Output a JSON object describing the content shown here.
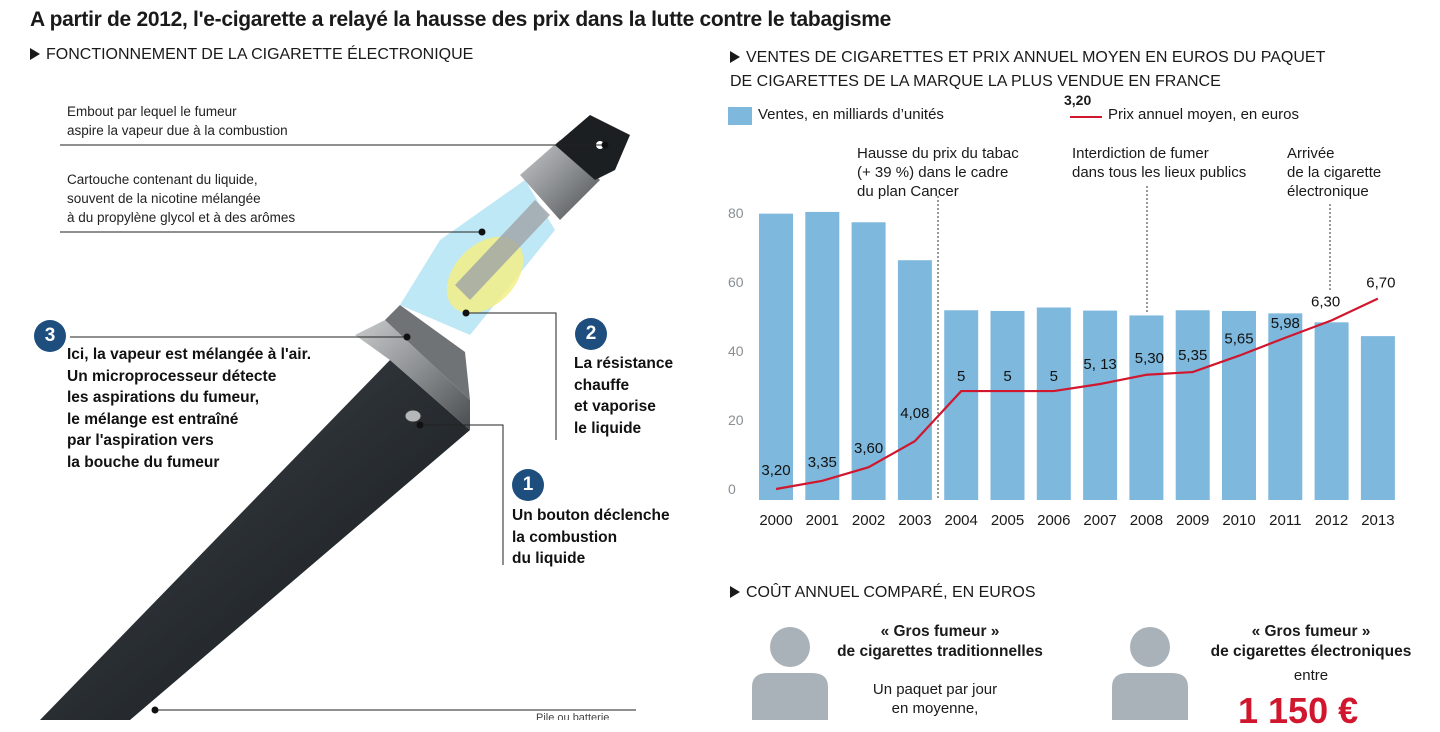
{
  "title": "A partir de 2012, l'e-cigarette a relayé la hausse des prix dans la lutte contre le tabagisme",
  "device": {
    "section_title": "FONCTIONNEMENT DE LA CIGARETTE ÉLECTRONIQUE",
    "label_mouthpiece": [
      "Embout par lequel le fumeur",
      "aspire la vapeur due à la combustion"
    ],
    "label_cartridge": [
      "Cartouche contenant du liquide,",
      "souvent de la nicotine mélangée",
      "à du propylène glycol et à des arômes"
    ],
    "step3": {
      "number": "3",
      "lines": [
        "Ici, la vapeur est mélangée à l'air.",
        "Un microprocesseur détecte",
        "les aspirations du fumeur,",
        "le mélange est entraîné",
        "par l'aspiration vers",
        "la bouche du fumeur"
      ]
    },
    "step2": {
      "number": "2",
      "lines": [
        "La résistance",
        "chauffe",
        "et vaporise",
        "le liquide"
      ]
    },
    "step1": {
      "number": "1",
      "lines": [
        "Un bouton déclenche",
        "la combustion",
        "du liquide"
      ]
    },
    "label_battery_cut": "Pile ou batterie"
  },
  "chart_section": {
    "title_lines": [
      "VENTES DE CIGARETTES ET PRIX ANNUEL MOYEN EN EUROS DU PAQUET",
      "DE CIGARETTES DE LA MARQUE LA PLUS VENDUE EN FRANCE"
    ],
    "legend_bar": "Ventes, en milliards d’unités",
    "legend_line": "Prix annuel moyen, en euros",
    "legend_line_example": "3,20",
    "annotations": [
      {
        "lines": [
          "Hausse du prix du tabac",
          "(+ 39 %) dans le cadre",
          "du plan Cancer"
        ]
      },
      {
        "lines": [
          "Interdiction de fumer",
          "dans tous les lieux publics"
        ]
      },
      {
        "lines": [
          "Arrivée",
          "de la cigarette",
          "électronique"
        ]
      }
    ]
  },
  "chart_data": {
    "type": "bar",
    "categories": [
      "2000",
      "2001",
      "2002",
      "2003",
      "2004",
      "2005",
      "2006",
      "2007",
      "2008",
      "2009",
      "2010",
      "2011",
      "2012",
      "2013"
    ],
    "yticks": [
      "0",
      "20",
      "40",
      "60",
      "80"
    ],
    "ylim": [
      0,
      85
    ],
    "series": [
      {
        "name": "Ventes, en milliards d’unités",
        "type": "bar",
        "color": "#7eb8dd",
        "values": [
          83,
          83.5,
          80.5,
          69.5,
          55,
          54.8,
          55.8,
          54.9,
          53.5,
          55,
          54.8,
          54.1,
          51.5,
          47.5
        ]
      },
      {
        "name": "Prix annuel moyen, en euros",
        "type": "line",
        "color": "#d0172e",
        "values": [
          3.2,
          3.35,
          3.6,
          4.08,
          5,
          5,
          5,
          5.13,
          5.3,
          5.35,
          5.65,
          5.98,
          6.3,
          6.7
        ],
        "labels": [
          "3,20",
          "3,35",
          "3,60",
          "4,08",
          "5",
          "5",
          "5",
          "5, 13",
          "5,30",
          "5,35",
          "5,65",
          "5,98",
          "6,30",
          "6,70"
        ]
      }
    ]
  },
  "cost": {
    "section_title": "COÛT ANNUEL COMPARÉ, EN EUROS",
    "left_title": [
      "« Gros fumeur »",
      "de cigarettes traditionnelles"
    ],
    "left_text": [
      "Un paquet par jour",
      "en moyenne,"
    ],
    "right_title": [
      "« Gros fumeur »",
      "de cigarettes électroniques"
    ],
    "right_text": "entre",
    "right_price": "1 150 €"
  },
  "colors": {
    "bar": "#7eb8dd",
    "line": "#d0172e",
    "badge": "#1d4e7e"
  }
}
